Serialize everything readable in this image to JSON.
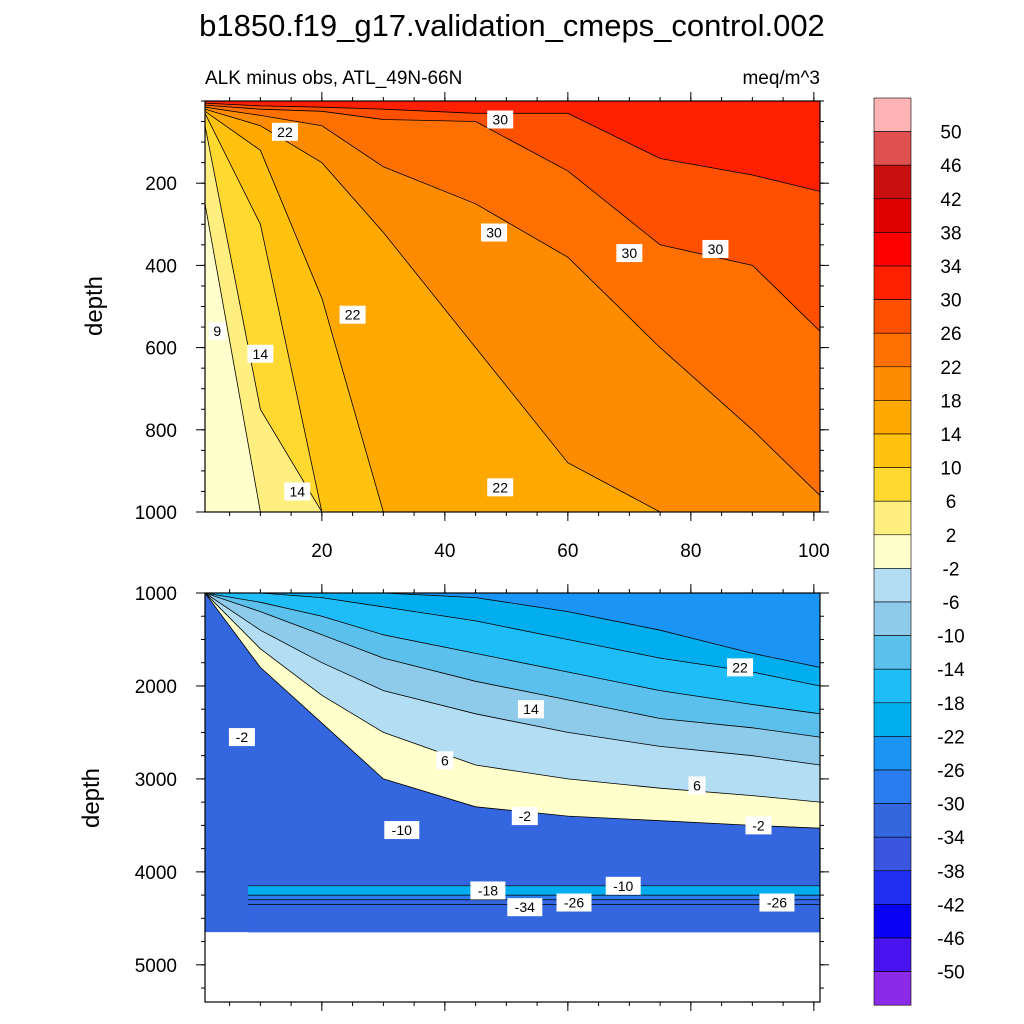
{
  "chart_data": {
    "type": "heatmap",
    "title": "b1850.f19_g17.validation_cmeps_control.002",
    "left_subtitle": "ALK minus obs, ATL_49N-66N",
    "right_subtitle": "meq/m^3",
    "x": {
      "ticks": [
        20,
        40,
        60,
        80,
        100
      ],
      "range": [
        1,
        101
      ],
      "minor_step": 5
    },
    "panels": [
      {
        "name": "upper",
        "ylabel": "depth",
        "ylim": [
          0,
          1000
        ],
        "yticks": [
          200,
          400,
          600,
          800,
          1000
        ],
        "bounds": [
          {
            "x": [
              1,
              10,
              20,
              30,
              45,
              60,
              75,
              90,
              101
            ],
            "y": [
              250,
              1000,
              1000,
              1000,
              1000,
              1000,
              1000,
              1000,
              1000
            ]
          },
          {
            "x": [
              1,
              10,
              20,
              30,
              45,
              60,
              75,
              90,
              101
            ],
            "y": [
              60,
              750,
              1000,
              1000,
              1000,
              1000,
              1000,
              1000,
              1000
            ]
          },
          {
            "x": [
              1,
              10,
              20,
              30,
              45,
              60,
              75,
              90,
              101
            ],
            "y": [
              30,
              300,
              1000,
              1000,
              1000,
              1000,
              1000,
              1000,
              1000
            ]
          },
          {
            "x": [
              1,
              10,
              20,
              30,
              45,
              60,
              75,
              90,
              101
            ],
            "y": [
              25,
              120,
              480,
              1000,
              1000,
              1000,
              1000,
              1000,
              1000
            ]
          },
          {
            "x": [
              1,
              10,
              20,
              30,
              45,
              60,
              75,
              90,
              101
            ],
            "y": [
              20,
              60,
              150,
              320,
              600,
              880,
              1000,
              1000,
              1000
            ]
          },
          {
            "x": [
              1,
              10,
              20,
              30,
              45,
              60,
              75,
              90,
              101
            ],
            "y": [
              15,
              35,
              60,
              160,
              250,
              380,
              600,
              800,
              960
            ]
          },
          {
            "x": [
              1,
              10,
              20,
              30,
              45,
              60,
              75,
              90,
              101
            ],
            "y": [
              10,
              20,
              25,
              45,
              50,
              170,
              350,
              400,
              560
            ]
          },
          {
            "x": [
              1,
              10,
              20,
              30,
              45,
              60,
              75,
              90,
              101
            ],
            "y": [
              5,
              12,
              15,
              20,
              30,
              30,
              140,
              180,
              220
            ]
          }
        ],
        "contour_labels": [
          {
            "text": "30",
            "x": 49,
            "y": 45
          },
          {
            "text": "30",
            "x": 48,
            "y": 320
          },
          {
            "text": "30",
            "x": 70,
            "y": 370
          },
          {
            "text": "30",
            "x": 84,
            "y": 360
          },
          {
            "text": "22",
            "x": 14,
            "y": 75
          },
          {
            "text": "22",
            "x": 25,
            "y": 520
          },
          {
            "text": "22",
            "x": 49,
            "y": 940
          },
          {
            "text": "9",
            "x": 3,
            "y": 560
          },
          {
            "text": "14",
            "x": 10,
            "y": 615
          },
          {
            "text": "14",
            "x": 16,
            "y": 950
          }
        ]
      },
      {
        "name": "lower",
        "ylabel": "depth",
        "ylim": [
          1000,
          5400
        ],
        "yticks": [
          1000,
          2000,
          3000,
          4000,
          5000
        ],
        "seafloor_depth": 4650,
        "bounds": [
          {
            "x": [
              1,
              10,
              20,
              30,
              45,
              60,
              75,
              90,
              101
            ],
            "y": [
              1000,
              1800,
              2400,
              3000,
              3300,
              3400,
              3450,
              3500,
              3530
            ]
          },
          {
            "x": [
              1,
              10,
              20,
              30,
              45,
              60,
              75,
              90,
              101
            ],
            "y": [
              1000,
              1600,
              2100,
              2500,
              2850,
              3000,
              3100,
              3180,
              3250
            ]
          },
          {
            "x": [
              1,
              10,
              20,
              30,
              45,
              60,
              75,
              90,
              101
            ],
            "y": [
              1000,
              1400,
              1750,
              2050,
              2300,
              2500,
              2650,
              2750,
              2850
            ]
          },
          {
            "x": [
              1,
              10,
              20,
              30,
              45,
              60,
              75,
              90,
              101
            ],
            "y": [
              1000,
              1200,
              1450,
              1700,
              1950,
              2150,
              2350,
              2450,
              2550
            ]
          },
          {
            "x": [
              1,
              10,
              20,
              30,
              45,
              60,
              75,
              90,
              101
            ],
            "y": [
              1000,
              1100,
              1250,
              1450,
              1650,
              1850,
              2050,
              2200,
              2300
            ]
          },
          {
            "x": [
              1,
              10,
              20,
              30,
              45,
              60,
              75,
              90,
              101
            ],
            "y": [
              1000,
              1000,
              1050,
              1150,
              1300,
              1500,
              1700,
              1850,
              2000
            ]
          },
          {
            "x": [
              1,
              10,
              20,
              30,
              45,
              60,
              75,
              90,
              101
            ],
            "y": [
              1000,
              1000,
              1000,
              1000,
              1050,
              1200,
              1400,
              1650,
              1800
            ]
          }
        ],
        "contour_labels": [
          {
            "text": "-2",
            "x": 7,
            "y": 2550
          },
          {
            "text": "6",
            "x": 40,
            "y": 2800
          },
          {
            "text": "6",
            "x": 81,
            "y": 3070
          },
          {
            "text": "14",
            "x": 54,
            "y": 2250
          },
          {
            "text": "22",
            "x": 88,
            "y": 1800
          },
          {
            "text": "-2",
            "x": 53,
            "y": 3400
          },
          {
            "text": "-2",
            "x": 91,
            "y": 3500
          },
          {
            "text": "-10",
            "x": 33,
            "y": 3550
          },
          {
            "text": "-10",
            "x": 69,
            "y": 4150
          },
          {
            "text": "-18",
            "x": 47,
            "y": 4200
          },
          {
            "text": "-26",
            "x": 61,
            "y": 4330
          },
          {
            "text": "-26",
            "x": 94,
            "y": 4330
          },
          {
            "text": "-34",
            "x": 53,
            "y": 4380
          }
        ]
      }
    ],
    "colorbar": {
      "labels": [
        "50",
        "46",
        "42",
        "38",
        "34",
        "30",
        "26",
        "22",
        "18",
        "14",
        "10",
        "6",
        "2",
        "-2",
        "-6",
        "-10",
        "-14",
        "-18",
        "-22",
        "-26",
        "-30",
        "-34",
        "-38",
        "-42",
        "-46",
        "-50"
      ],
      "colors_top_to_bottom": [
        "#FFB3B3",
        "#E05050",
        "#C81010",
        "#E00000",
        "#FF0000",
        "#FF2000",
        "#FF5000",
        "#FF7000",
        "#FF8C00",
        "#FFA800",
        "#FFC20E",
        "#FFD830",
        "#FFEE80",
        "#FFFFCC",
        "#B3DDF2",
        "#8ECBEB",
        "#5BC0EB",
        "#1EBDF8",
        "#00AEEF",
        "#1A94F5",
        "#2B7CF0",
        "#3466E0",
        "#3A56E0",
        "#1F2EF0",
        "#0A00F5",
        "#4A14F0",
        "#8B2BE8"
      ]
    }
  }
}
